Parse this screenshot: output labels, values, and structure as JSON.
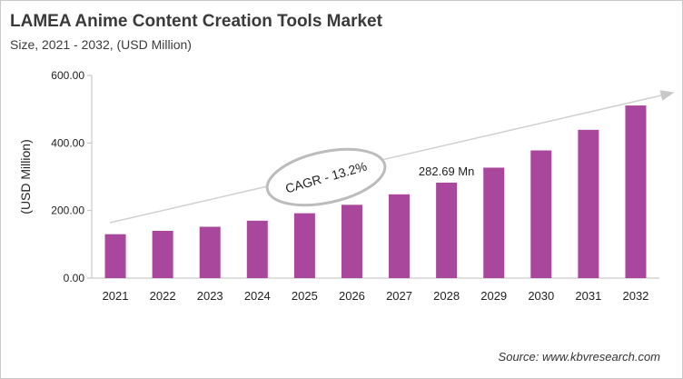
{
  "chart_data": {
    "type": "bar",
    "title": "LAMEA Anime Content Creation Tools Market",
    "subtitle": "Size, 2021 - 2032, (USD Million)",
    "ylabel": "(USD Million)",
    "xlabel": "",
    "ylim": [
      0,
      600
    ],
    "yticks": [
      "0.00",
      "200.00",
      "400.00",
      "600.00"
    ],
    "categories": [
      "2021",
      "2022",
      "2023",
      "2024",
      "2025",
      "2026",
      "2027",
      "2028",
      "2029",
      "2030",
      "2031",
      "2032"
    ],
    "values": [
      130,
      140,
      152,
      170,
      192,
      217,
      248,
      282.69,
      327,
      378,
      439,
      511
    ],
    "data_label": {
      "category": "2028",
      "text": "282.69 Mn"
    },
    "annotation": "CAGR - 13.2%",
    "grid": false,
    "legend": "none",
    "bar_color": "#a8479b"
  },
  "source": "Source: www.kbvresearch.com"
}
